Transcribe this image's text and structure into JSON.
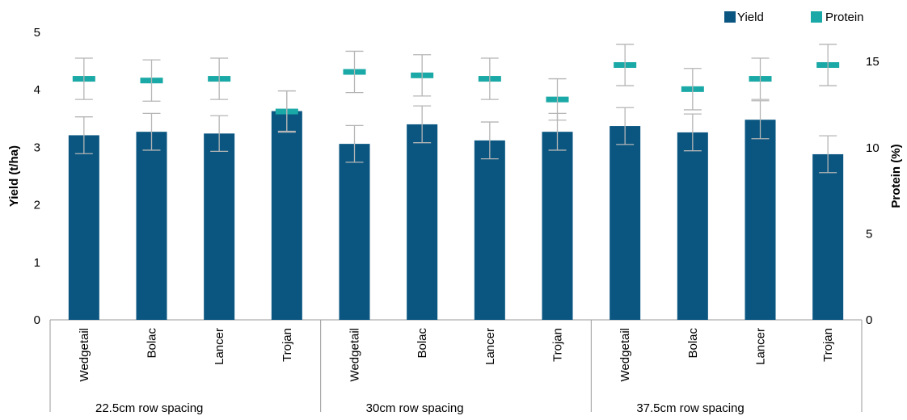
{
  "chart_data": {
    "type": "bar",
    "title": "",
    "xlabel": "",
    "ylabel": "Yield (t/ha)",
    "y2label": "Protein (%)",
    "ylim": [
      0,
      5
    ],
    "y2lim": [
      0,
      16.7
    ],
    "yticks": [
      "0",
      "1",
      "2",
      "3",
      "4",
      "5"
    ],
    "y2ticks": [
      "0",
      "5",
      "10",
      "15"
    ],
    "y2tick_values": [
      0,
      5,
      10,
      15
    ],
    "groups": [
      {
        "label": "22.5cm row spacing",
        "categories": [
          "Wedgetail",
          "Bolac",
          "Lancer",
          "Trojan"
        ]
      },
      {
        "label": "30cm row spacing",
        "categories": [
          "Wedgetail",
          "Bolac",
          "Lancer",
          "Trojan"
        ]
      },
      {
        "label": "37.5cm row spacing",
        "categories": [
          "Wedgetail",
          "Bolac",
          "Lancer",
          "Trojan"
        ]
      }
    ],
    "series": [
      {
        "name": "Yield",
        "axis": "left",
        "color": "#0a5681",
        "values": [
          3.21,
          3.27,
          3.24,
          3.63,
          3.06,
          3.4,
          3.12,
          3.27,
          3.37,
          3.26,
          3.48,
          2.88
        ],
        "error": [
          0.32,
          0.32,
          0.31,
          0.35,
          0.32,
          0.32,
          0.32,
          0.32,
          0.32,
          0.32,
          0.33,
          0.32
        ]
      },
      {
        "name": "Protein",
        "axis": "right",
        "color": "#1aa9a6",
        "values": [
          14.0,
          13.9,
          14.0,
          12.1,
          14.4,
          14.2,
          14.0,
          12.8,
          14.8,
          13.4,
          14.0,
          14.8
        ],
        "error": [
          1.2,
          1.2,
          1.2,
          1.2,
          1.2,
          1.2,
          1.2,
          1.2,
          1.2,
          1.2,
          1.2,
          1.2
        ]
      }
    ],
    "legend": "top-right",
    "grid": false
  }
}
